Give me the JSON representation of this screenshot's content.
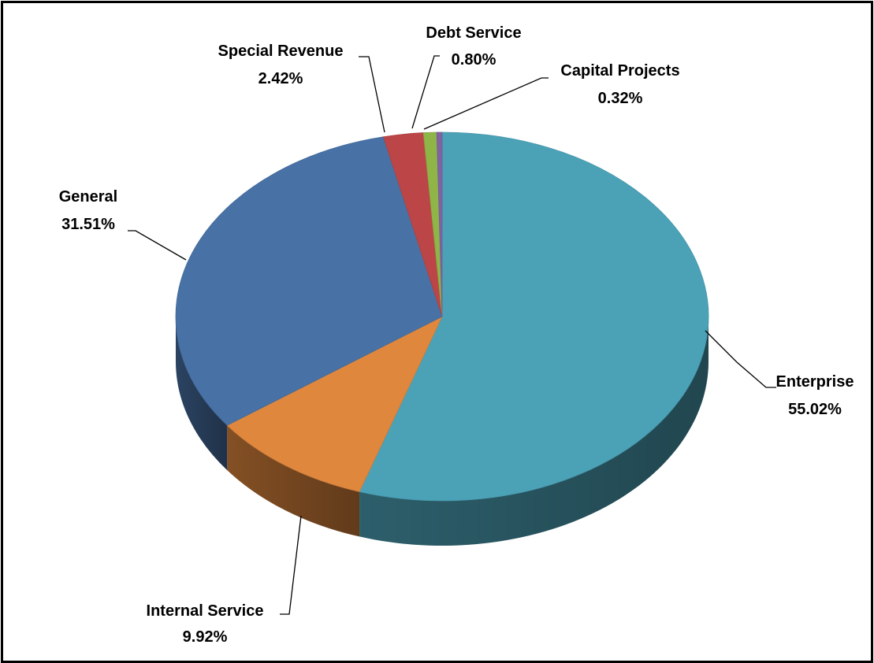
{
  "chart_data": {
    "type": "pie",
    "title": "",
    "style": "3d",
    "start_angle_deg": -90,
    "slices": [
      {
        "name": "Enterprise",
        "value": 55.02,
        "label": "55.02%",
        "color": "#4BA2B7"
      },
      {
        "name": "Internal Service",
        "value": 9.92,
        "label": "9.92%",
        "color": "#E0873E"
      },
      {
        "name": "General",
        "value": 31.51,
        "label": "31.51%",
        "color": "#4872A6"
      },
      {
        "name": "Special Revenue",
        "value": 2.42,
        "label": "2.42%",
        "color": "#BC4647"
      },
      {
        "name": "Debt Service",
        "value": 0.8,
        "label": "0.80%",
        "color": "#8FB548"
      },
      {
        "name": "Capital Projects",
        "value": 0.32,
        "label": "0.32%",
        "color": "#7F63A3"
      }
    ]
  }
}
